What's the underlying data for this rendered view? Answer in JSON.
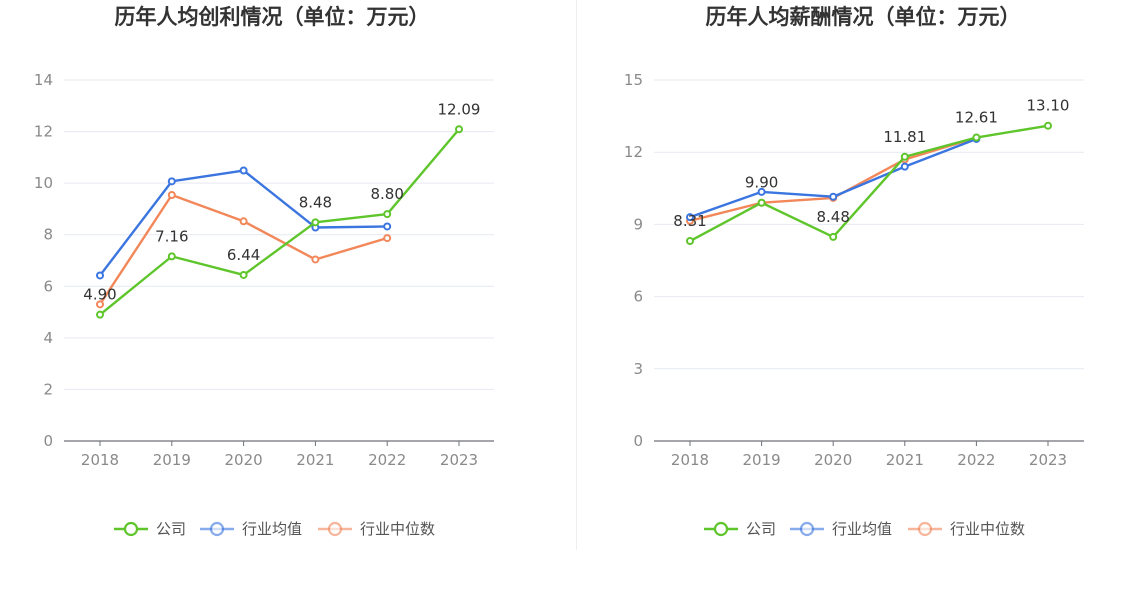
{
  "chart_data": [
    {
      "type": "line",
      "title": "历年人均创利情况（单位：万元）",
      "categories": [
        "2018",
        "2019",
        "2020",
        "2021",
        "2022",
        "2023"
      ],
      "ylim": [
        0,
        14
      ],
      "yticks": [
        0,
        2,
        4,
        6,
        8,
        10,
        12,
        14
      ],
      "grid": true,
      "legend_position": "bottom-center",
      "series": [
        {
          "name": "公司",
          "color": "#5ec52b",
          "values": [
            4.9,
            7.16,
            6.44,
            8.48,
            8.8,
            12.09
          ],
          "labels": [
            "4.90",
            "7.16",
            "6.44",
            "8.48",
            "8.80",
            "12.09"
          ]
        },
        {
          "name": "行业均值",
          "color": "#3a75e0",
          "values": [
            6.42,
            10.07,
            10.49,
            8.28,
            8.32,
            null
          ]
        },
        {
          "name": "行业中位数",
          "color": "#f2875a",
          "values": [
            5.3,
            9.54,
            8.52,
            7.04,
            7.87,
            null
          ]
        }
      ]
    },
    {
      "type": "line",
      "title": "历年人均薪酬情况（单位：万元）",
      "categories": [
        "2018",
        "2019",
        "2020",
        "2021",
        "2022",
        "2023"
      ],
      "ylim": [
        0,
        15
      ],
      "yticks": [
        0,
        3,
        6,
        9,
        12,
        15
      ],
      "grid": true,
      "legend_position": "bottom-center",
      "series": [
        {
          "name": "公司",
          "color": "#5ec52b",
          "values": [
            8.31,
            9.9,
            8.48,
            11.81,
            12.61,
            13.1
          ],
          "labels": [
            "8.31",
            "9.90",
            "8.48",
            "11.81",
            "12.61",
            "13.10"
          ]
        },
        {
          "name": "行业均值",
          "color": "#3a75e0",
          "values": [
            9.3,
            10.35,
            10.15,
            11.4,
            12.55,
            null
          ]
        },
        {
          "name": "行业中位数",
          "color": "#f2875a",
          "values": [
            9.15,
            9.9,
            10.1,
            11.7,
            12.6,
            null
          ]
        }
      ]
    }
  ]
}
